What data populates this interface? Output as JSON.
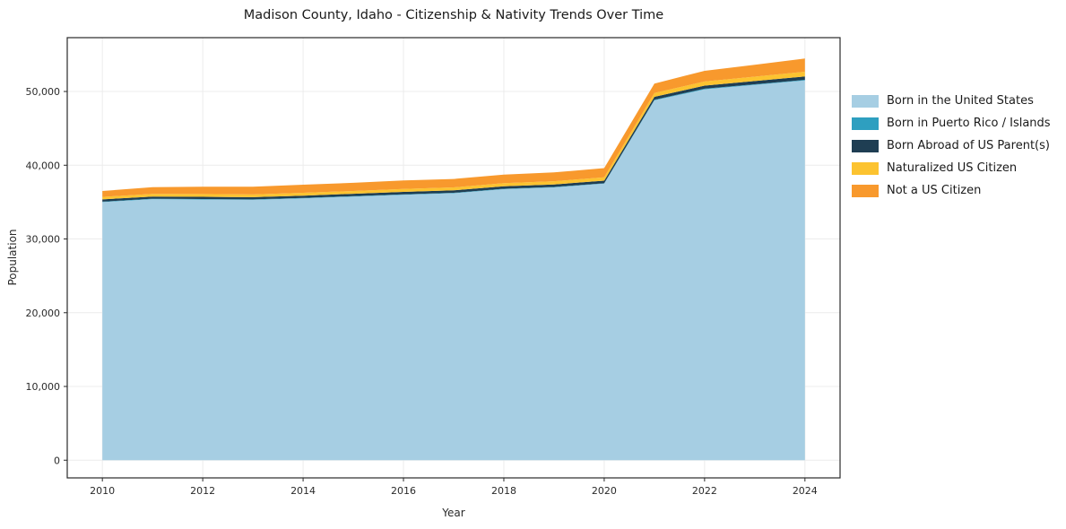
{
  "chart_data": {
    "type": "area",
    "stacked": true,
    "title": "Madison County, Idaho - Citizenship & Nativity Trends Over Time",
    "xlabel": "Year",
    "ylabel": "Population",
    "grid": true,
    "legend_position": "right",
    "x": [
      2010,
      2011,
      2012,
      2013,
      2014,
      2015,
      2016,
      2017,
      2018,
      2019,
      2020,
      2021,
      2022,
      2023,
      2024
    ],
    "xticks": [
      2010,
      2012,
      2014,
      2016,
      2018,
      2020,
      2022,
      2024
    ],
    "yticks": [
      0,
      10000,
      20000,
      30000,
      40000,
      50000
    ],
    "ylim": [
      -2400,
      57300
    ],
    "series": [
      {
        "name": "Born in the United States",
        "color": "#a6cee3",
        "values": [
          35000,
          35400,
          35350,
          35300,
          35500,
          35750,
          36000,
          36200,
          36750,
          37000,
          37500,
          48800,
          50300,
          50900,
          51500
        ]
      },
      {
        "name": "Born in Puerto Rico / Islands",
        "color": "#2e9fc0",
        "values": [
          60,
          60,
          60,
          60,
          60,
          60,
          60,
          60,
          60,
          60,
          60,
          80,
          80,
          80,
          80
        ]
      },
      {
        "name": "Born Abroad of US Parent(s)",
        "color": "#1f3e53",
        "values": [
          300,
          300,
          310,
          310,
          320,
          320,
          330,
          330,
          340,
          340,
          350,
          400,
          420,
          430,
          450
        ]
      },
      {
        "name": "Naturalized US Citizen",
        "color": "#fcc330",
        "values": [
          350,
          360,
          370,
          370,
          380,
          380,
          390,
          400,
          420,
          430,
          450,
          500,
          550,
          600,
          650
        ]
      },
      {
        "name": "Not a US Citizen",
        "color": "#f8992d",
        "values": [
          800,
          900,
          1000,
          1050,
          1100,
          1100,
          1150,
          1150,
          1150,
          1200,
          1250,
          1300,
          1450,
          1600,
          1800
        ]
      }
    ]
  }
}
